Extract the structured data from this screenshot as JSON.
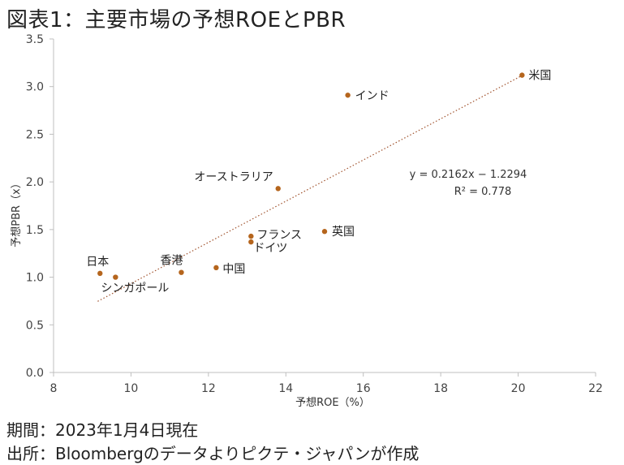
{
  "title": "図表1：主要市場の予想ROEとPBR",
  "footer": {
    "period": "期間：2023年1月4日現在",
    "source": "出所：Bloombergのデータよりピクテ・ジャパンが作成"
  },
  "chart_data": {
    "type": "scatter",
    "xlabel": "予想ROE（%）",
    "ylabel": "予想PBR（x）",
    "xlim": [
      8,
      22
    ],
    "ylim": [
      0,
      3.5
    ],
    "x_ticks": [
      "8",
      "10",
      "12",
      "14",
      "16",
      "18",
      "20",
      "22"
    ],
    "y_ticks": [
      "0.0",
      "0.5",
      "1.0",
      "1.5",
      "2.0",
      "2.5",
      "3.0",
      "3.5"
    ],
    "grid": false,
    "marker_color": "#b5651d",
    "trendline_color": "#a0522d",
    "points": [
      {
        "label": "米国",
        "x": 20.1,
        "y": 3.12
      },
      {
        "label": "インド",
        "x": 15.6,
        "y": 2.91
      },
      {
        "label": "オーストラリア",
        "x": 13.8,
        "y": 1.93
      },
      {
        "label": "英国",
        "x": 15.0,
        "y": 1.48
      },
      {
        "label": "フランス",
        "x": 13.1,
        "y": 1.43
      },
      {
        "label": "ドイツ",
        "x": 13.1,
        "y": 1.37
      },
      {
        "label": "中国",
        "x": 12.2,
        "y": 1.1
      },
      {
        "label": "香港",
        "x": 11.3,
        "y": 1.05
      },
      {
        "label": "日本",
        "x": 9.2,
        "y": 1.04
      },
      {
        "label": "シンガポール",
        "x": 9.6,
        "y": 1.0
      }
    ],
    "trendline": {
      "slope": 0.2162,
      "intercept": -1.2294,
      "x_range": [
        9.2,
        20.1
      ],
      "equation": "y = 0.2162x − 1.2294",
      "r_squared": "R² = 0.778"
    }
  }
}
